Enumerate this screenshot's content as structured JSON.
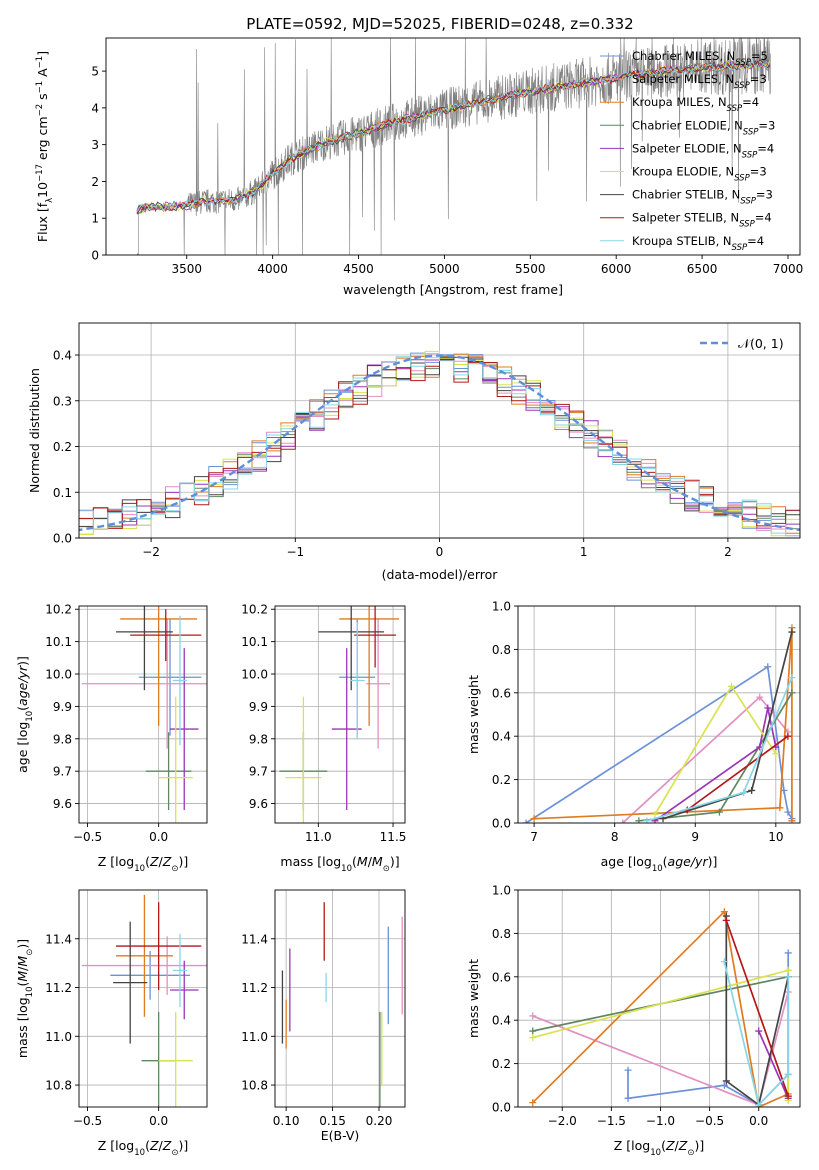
{
  "figure": {
    "title": "PLATE=0592, MJD=52025, FIBERID=0248, z=0.332"
  },
  "colors": {
    "Chabrier MILES": "#6c91d8",
    "Salpeter MILES": "#e48fc3",
    "Kroupa MILES": "#e07b1f",
    "Chabrier ELODIE": "#5f8760",
    "Salpeter ELODIE": "#9b35b5",
    "Kroupa ELODIE": "#d9e34f",
    "Chabrier STELIB": "#444444",
    "Salpeter STELIB": "#b31818",
    "Kroupa STELIB": "#86d6e8",
    "gauss": "#5f8fdb",
    "data": "#7f7f7f"
  },
  "chart_data": [
    {
      "id": "spectrum",
      "type": "line",
      "title": "PLATE=0592, MJD=52025, FIBERID=0248, z=0.332",
      "xlabel": "wavelength [Angstrom, rest frame]",
      "ylabel": "Flux [f_λ 10^-17 erg cm^-2 s^-1 A^-1]",
      "xlim": [
        3030,
        7070
      ],
      "ylim": [
        0,
        5.9
      ],
      "xticks": [
        3500,
        4000,
        4500,
        5000,
        5500,
        6000,
        6500,
        7000
      ],
      "yticks": [
        0,
        1,
        2,
        3,
        4,
        5
      ],
      "legend_position": "top-right",
      "series": [
        {
          "name": "Chabrier MILES, N_SSP=5",
          "label": "Chabrier MILES, N",
          "sub": "SSP",
          "suffix": "=5"
        },
        {
          "name": "Salpeter MILES, N_SSP=3",
          "label": "Salpeter MILES, N",
          "sub": "SSP",
          "suffix": "=3"
        },
        {
          "name": "Kroupa MILES, N_SSP=4",
          "label": "Kroupa MILES, N",
          "sub": "SSP",
          "suffix": "=4"
        },
        {
          "name": "Chabrier ELODIE, N_SSP=3",
          "label": "Chabrier ELODIE, N",
          "sub": "SSP",
          "suffix": "=3"
        },
        {
          "name": "Salpeter ELODIE, N_SSP=4",
          "label": "Salpeter ELODIE, N",
          "sub": "SSP",
          "suffix": "=4"
        },
        {
          "name": "Kroupa ELODIE, N_SSP=3",
          "label": "Kroupa ELODIE, N",
          "sub": "SSP",
          "suffix": "=3"
        },
        {
          "name": "Chabrier STELIB, N_SSP=3",
          "label": "Chabrier STELIB, N",
          "sub": "SSP",
          "suffix": "=3"
        },
        {
          "name": "Salpeter STELIB, N_SSP=4",
          "label": "Salpeter STELIB, N",
          "sub": "SSP",
          "suffix": "=4"
        },
        {
          "name": "Kroupa STELIB, N_SSP=4",
          "label": "Kroupa STELIB, N",
          "sub": "SSP",
          "suffix": "=4"
        }
      ],
      "continuum": {
        "x": [
          3210,
          3300,
          3500,
          3600,
          3800,
          3900,
          4000,
          4100,
          4300,
          4500,
          4700,
          4900,
          5100,
          5300,
          5500,
          5700,
          5900,
          6100,
          6300,
          6500,
          6700,
          6900
        ],
        "y": [
          1.25,
          1.3,
          1.35,
          1.45,
          1.5,
          1.75,
          2.2,
          2.6,
          3.05,
          3.3,
          3.6,
          3.85,
          4.05,
          4.25,
          4.45,
          4.6,
          4.75,
          4.9,
          5.0,
          5.1,
          5.15,
          5.2
        ]
      }
    },
    {
      "id": "residuals",
      "type": "step",
      "xlabel": "(data-model)/error",
      "ylabel": "Normed distribution",
      "xlim": [
        -2.5,
        2.5
      ],
      "ylim": [
        0,
        0.47
      ],
      "xticks": [
        -2,
        -1,
        0,
        1,
        2
      ],
      "yticks": [
        0.0,
        0.1,
        0.2,
        0.3,
        0.4
      ],
      "legend": "𝒩(0, 1)",
      "legend_position": "top-right",
      "reference_curve": "normal(0,1)"
    },
    {
      "id": "age_vs_Z",
      "type": "errorbar",
      "xlabel": "Z [log10(Z/Z⊙)]",
      "ylabel": "age [log10(age/yr)]",
      "xlim": [
        -0.56,
        0.34
      ],
      "ylim": [
        9.54,
        10.21
      ],
      "xticks": [
        -0.5,
        0.0
      ],
      "yticks": [
        9.6,
        9.7,
        9.8,
        9.9,
        10.0,
        10.1,
        10.2
      ],
      "points": [
        {
          "model": "Chabrier MILES",
          "x": 0.08,
          "y": 9.99,
          "xerr": 0.22,
          "yerr": 0.18
        },
        {
          "model": "Salpeter MILES",
          "x": 0.06,
          "y": 9.97,
          "xerr": 0.6,
          "yerr": 0.2
        },
        {
          "model": "Kroupa MILES",
          "x": 0.0,
          "y": 10.17,
          "xerr": 0.27,
          "yerr": 0.33
        },
        {
          "model": "Chabrier ELODIE",
          "x": 0.07,
          "y": 9.7,
          "xerr": 0.16,
          "yerr": 0.12
        },
        {
          "model": "Salpeter ELODIE",
          "x": 0.18,
          "y": 9.83,
          "xerr": 0.1,
          "yerr": 0.25
        },
        {
          "model": "Kroupa ELODIE",
          "x": 0.12,
          "y": 9.68,
          "xerr": 0.12,
          "yerr": 0.25
        },
        {
          "model": "Chabrier STELIB",
          "x": -0.1,
          "y": 10.13,
          "xerr": 0.2,
          "yerr": 0.18
        },
        {
          "model": "Salpeter STELIB",
          "x": 0.05,
          "y": 10.12,
          "xerr": 0.25,
          "yerr": 0.08
        },
        {
          "model": "Kroupa STELIB",
          "x": 0.15,
          "y": 9.98,
          "xerr": 0.05,
          "yerr": 0.2
        }
      ]
    },
    {
      "id": "age_vs_mass",
      "type": "errorbar",
      "xlabel": "mass [log10(M/M⊙)]",
      "ylim": [
        9.54,
        10.21
      ],
      "xlim": [
        10.71,
        11.58
      ],
      "xticks": [
        11.0,
        11.5
      ],
      "yticks": [
        9.6,
        9.7,
        9.8,
        9.9,
        10.0,
        10.1,
        10.2
      ],
      "points": [
        {
          "model": "Chabrier MILES",
          "x": 11.26,
          "y": 9.99,
          "xerr": 0.12,
          "yerr": 0.18
        },
        {
          "model": "Salpeter MILES",
          "x": 11.4,
          "y": 9.97,
          "xerr": 0.08,
          "yerr": 0.2
        },
        {
          "model": "Kroupa MILES",
          "x": 11.34,
          "y": 10.17,
          "xerr": 0.2,
          "yerr": 0.33
        },
        {
          "model": "Chabrier ELODIE",
          "x": 10.9,
          "y": 9.7,
          "xerr": 0.16,
          "yerr": 0.12
        },
        {
          "model": "Salpeter ELODIE",
          "x": 11.19,
          "y": 9.83,
          "xerr": 0.1,
          "yerr": 0.25
        },
        {
          "model": "Kroupa ELODIE",
          "x": 10.9,
          "y": 9.68,
          "xerr": 0.12,
          "yerr": 0.25
        },
        {
          "model": "Chabrier STELIB",
          "x": 11.22,
          "y": 10.13,
          "xerr": 0.22,
          "yerr": 0.18
        },
        {
          "model": "Salpeter STELIB",
          "x": 11.38,
          "y": 10.12,
          "xerr": 0.14,
          "yerr": 0.1
        },
        {
          "model": "Kroupa STELIB",
          "x": 11.26,
          "y": 9.98,
          "xerr": 0.05,
          "yerr": 0.18
        }
      ]
    },
    {
      "id": "weight_vs_age",
      "type": "line",
      "xlabel": "age [log10(age/yr)]",
      "ylabel": "mass weight",
      "xlim": [
        6.8,
        10.3
      ],
      "ylim": [
        0.0,
        1.0
      ],
      "xticks": [
        7,
        8,
        9,
        10
      ],
      "yticks": [
        0.0,
        0.2,
        0.4,
        0.6,
        0.8,
        1.0
      ],
      "series": [
        {
          "model": "Chabrier MILES",
          "x": [
            6.9,
            9.9,
            10.1,
            10.15,
            10.2
          ],
          "y": [
            0.0,
            0.72,
            0.15,
            0.05,
            0.02
          ]
        },
        {
          "model": "Salpeter MILES",
          "x": [
            8.1,
            9.8,
            10.15
          ],
          "y": [
            0.0,
            0.58,
            0.42
          ]
        },
        {
          "model": "Kroupa MILES",
          "x": [
            7.0,
            10.05,
            10.2,
            10.2
          ],
          "y": [
            0.02,
            0.07,
            0.9,
            0.01
          ]
        },
        {
          "model": "Chabrier ELODIE",
          "x": [
            8.3,
            9.3,
            10.2
          ],
          "y": [
            0.01,
            0.05,
            0.6
          ]
        },
        {
          "model": "Salpeter ELODIE",
          "x": [
            8.5,
            9.8,
            9.9,
            10.0
          ],
          "y": [
            0.01,
            0.35,
            0.53,
            0.35
          ]
        },
        {
          "model": "Kroupa ELODIE",
          "x": [
            8.5,
            9.45,
            10.0
          ],
          "y": [
            0.04,
            0.63,
            0.32
          ]
        },
        {
          "model": "Chabrier STELIB",
          "x": [
            8.6,
            9.7,
            10.2
          ],
          "y": [
            0.02,
            0.15,
            0.88
          ]
        },
        {
          "model": "Salpeter STELIB",
          "x": [
            8.9,
            10.15
          ],
          "y": [
            0.06,
            0.4
          ]
        },
        {
          "model": "Kroupa STELIB",
          "x": [
            8.4,
            9.6,
            10.2
          ],
          "y": [
            0.01,
            0.14,
            0.67
          ]
        }
      ]
    },
    {
      "id": "mass_vs_Z",
      "type": "errorbar",
      "xlabel": "Z [log10(Z/Z⊙)]",
      "ylabel": "mass [log10(M/M⊙)]",
      "xlim": [
        -0.56,
        0.34
      ],
      "ylim": [
        10.71,
        11.6
      ],
      "xticks": [
        -0.5,
        0.0
      ],
      "yticks": [
        10.8,
        11.0,
        11.2,
        11.4
      ],
      "points": [
        {
          "model": "Chabrier MILES",
          "x": -0.06,
          "y": 11.25,
          "xerr": 0.28,
          "yerr": 0.1
        },
        {
          "model": "Salpeter MILES",
          "x": 0.06,
          "y": 11.29,
          "xerr": 0.6,
          "yerr": 0.12
        },
        {
          "model": "Kroupa MILES",
          "x": -0.1,
          "y": 11.33,
          "xerr": 0.2,
          "yerr": 0.25
        },
        {
          "model": "Chabrier ELODIE",
          "x": 0.0,
          "y": 10.9,
          "xerr": 0.12,
          "yerr": 0.2
        },
        {
          "model": "Salpeter ELODIE",
          "x": 0.18,
          "y": 11.19,
          "xerr": 0.1,
          "yerr": 0.12
        },
        {
          "model": "Kroupa ELODIE",
          "x": 0.12,
          "y": 10.9,
          "xerr": 0.12,
          "yerr": 0.2
        },
        {
          "model": "Chabrier STELIB",
          "x": -0.2,
          "y": 11.22,
          "xerr": 0.12,
          "yerr": 0.25
        },
        {
          "model": "Salpeter STELIB",
          "x": 0.0,
          "y": 11.37,
          "xerr": 0.3,
          "yerr": 0.18
        },
        {
          "model": "Kroupa STELIB",
          "x": 0.15,
          "y": 11.27,
          "xerr": 0.05,
          "yerr": 0.15
        }
      ]
    },
    {
      "id": "mass_vs_EBV",
      "type": "errorbar",
      "xlabel": "E(B-V)",
      "xlim": [
        0.088,
        0.228
      ],
      "ylim": [
        10.71,
        11.6
      ],
      "xticks": [
        0.1,
        0.15,
        0.2
      ],
      "yticks": [
        10.8,
        11.0,
        11.2,
        11.4
      ],
      "points": [
        {
          "model": "Chabrier MILES",
          "x": 0.21,
          "y": 11.25,
          "xerr": 0,
          "yerr": 0.2
        },
        {
          "model": "Salpeter MILES",
          "x": 0.225,
          "y": 11.29,
          "xerr": 0,
          "yerr": 0.2
        },
        {
          "model": "Kroupa MILES",
          "x": 0.1,
          "y": 11.05,
          "xerr": 0,
          "yerr": 0.1
        },
        {
          "model": "Chabrier ELODIE",
          "x": 0.201,
          "y": 10.9,
          "xerr": 0,
          "yerr": 0.2
        },
        {
          "model": "Salpeter ELODIE",
          "x": 0.104,
          "y": 11.19,
          "xerr": 0,
          "yerr": 0.17
        },
        {
          "model": "Kroupa ELODIE",
          "x": 0.203,
          "y": 10.95,
          "xerr": 0,
          "yerr": 0.15
        },
        {
          "model": "Chabrier STELIB",
          "x": 0.096,
          "y": 11.12,
          "xerr": 0,
          "yerr": 0.15
        },
        {
          "model": "Salpeter STELIB",
          "x": 0.141,
          "y": 11.43,
          "xerr": 0,
          "yerr": 0.12
        },
        {
          "model": "Kroupa STELIB",
          "x": 0.143,
          "y": 11.2,
          "xerr": 0,
          "yerr": 0.06
        }
      ]
    },
    {
      "id": "weight_vs_Z",
      "type": "line",
      "xlabel": "Z [log10(Z/Z⊙)]",
      "ylabel": "mass weight",
      "xlim": [
        -2.45,
        0.42
      ],
      "ylim": [
        0.0,
        1.0
      ],
      "xticks": [
        -2.0,
        -1.5,
        -1.0,
        -0.5,
        0.0
      ],
      "yticks": [
        0.0,
        0.2,
        0.4,
        0.6,
        0.8,
        1.0
      ],
      "series": [
        {
          "model": "Chabrier MILES",
          "x": [
            -1.33,
            -1.33,
            -0.35,
            0.0,
            0.3,
            0.3
          ],
          "y": [
            0.17,
            0.04,
            0.1,
            0.01,
            0.15,
            0.71
          ]
        },
        {
          "model": "Salpeter MILES",
          "x": [
            -2.3,
            0.0,
            0.3
          ],
          "y": [
            0.42,
            0.01,
            0.53
          ]
        },
        {
          "model": "Kroupa MILES",
          "x": [
            -2.3,
            -0.35,
            0.0,
            0.3
          ],
          "y": [
            0.02,
            0.9,
            0.0,
            0.06
          ]
        },
        {
          "model": "Chabrier ELODIE",
          "x": [
            -2.3,
            0.3,
            0.3
          ],
          "y": [
            0.35,
            0.6,
            0.05
          ]
        },
        {
          "model": "Salpeter ELODIE",
          "x": [
            0.0,
            0.3
          ],
          "y": [
            0.35,
            0.04
          ]
        },
        {
          "model": "Kroupa ELODIE",
          "x": [
            -2.3,
            0.3,
            0.3
          ],
          "y": [
            0.32,
            0.63,
            0.03
          ]
        },
        {
          "model": "Chabrier STELIB",
          "x": [
            -0.33,
            -0.33,
            0.0,
            0.3
          ],
          "y": [
            0.88,
            0.12,
            0.01,
            0.6
          ]
        },
        {
          "model": "Salpeter STELIB",
          "x": [
            -0.33,
            0.3
          ],
          "y": [
            0.86,
            0.05
          ]
        },
        {
          "model": "Kroupa STELIB",
          "x": [
            -0.35,
            0.0,
            0.3,
            0.3
          ],
          "y": [
            0.67,
            0.01,
            0.15,
            0.6
          ]
        }
      ]
    }
  ]
}
